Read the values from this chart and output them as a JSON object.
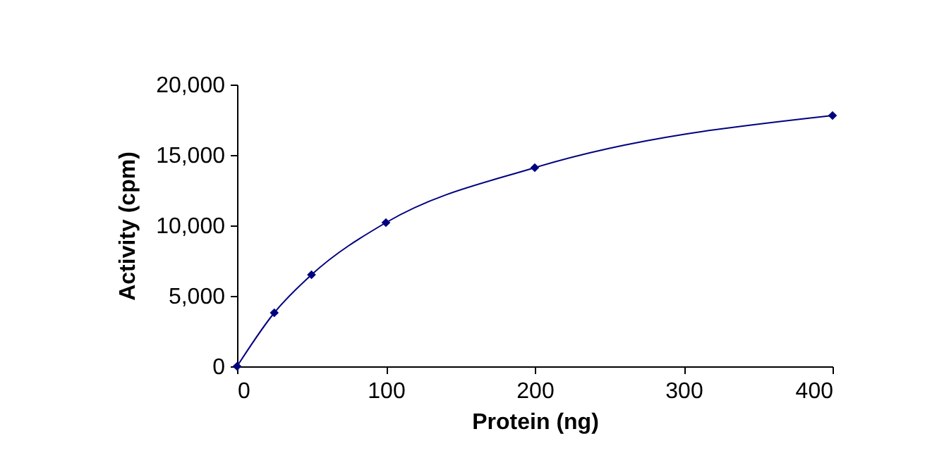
{
  "chart_data": {
    "type": "line",
    "xlabel": "Protein (ng)",
    "ylabel": "Activity (cpm)",
    "x": [
      0,
      25,
      50,
      100,
      200,
      400
    ],
    "series": [
      {
        "color": "#000080",
        "values": [
          0,
          3800,
          6500,
          10200,
          14100,
          17800
        ]
      }
    ],
    "xlim": [
      0,
      400
    ],
    "xticks": [
      0,
      100,
      200,
      300,
      400
    ],
    "ylim": [
      0,
      20000
    ],
    "yticks": [
      0,
      {
        "value": 5000,
        "label": "5,000"
      },
      {
        "value": 10000,
        "label": "10,000"
      },
      {
        "value": 15000,
        "label": "15,000"
      },
      {
        "value": 20000,
        "label": "20,000"
      }
    ],
    "marker": "diamond",
    "line_style": "solid",
    "grid": false
  }
}
